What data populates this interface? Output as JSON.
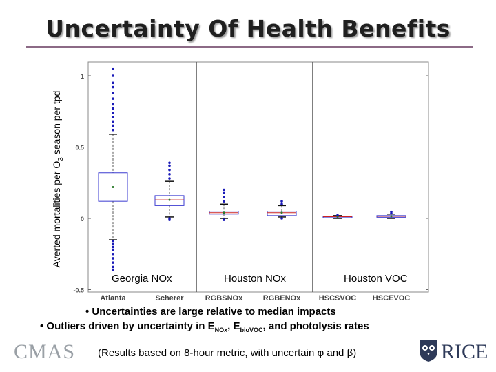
{
  "title": "Uncertainty Of Health Benefits",
  "y_axis_label": "Averted mortalities per O",
  "y_axis_label_sub": "3",
  "y_axis_label_tail": " season per tpd",
  "group_labels": [
    "Georgia NOx",
    "Houston NOx",
    "Houston VOC"
  ],
  "bullets": {
    "bullet1": "• Uncertainties are large relative to median impacts",
    "bullet2_pre": "• Outliers driven by uncertainty in E",
    "bullet2_sub1": "NOx",
    "bullet2_mid": ", E",
    "bullet2_sub2": "bioVOC",
    "bullet2_post": ", and photolysis rates"
  },
  "note": "(Results based on 8-hour metric, with uncertain φ and β)",
  "logos": {
    "left": "CMAS",
    "right": "RICE"
  },
  "colors": {
    "box": "#3a3ad0",
    "median": "#cc2222",
    "outlier": "#1a1ab8",
    "divider": "#555555"
  },
  "chart_data": {
    "type": "box",
    "title": "",
    "ylabel": "Averted mortalities per O3 season per tpd",
    "ylim": [
      -0.5,
      1.05
    ],
    "yticks": [
      1,
      0.5,
      0,
      -0.5
    ],
    "categories": [
      "Atlanta",
      "Scherer",
      "RGBSNOx",
      "RGBENOx",
      "HSCSVOC",
      "HSCEVOC"
    ],
    "groups": [
      {
        "name": "Georgia NOx",
        "members": [
          "Atlanta",
          "Scherer"
        ]
      },
      {
        "name": "Houston NOx",
        "members": [
          "RGBSNOx",
          "RGBENOx"
        ]
      },
      {
        "name": "Houston VOC",
        "members": [
          "HSCSVOC",
          "HSCEVOC"
        ]
      }
    ],
    "series": [
      {
        "name": "Atlanta",
        "whisker_low": -0.15,
        "q1": 0.12,
        "median": 0.22,
        "q3": 0.32,
        "whisker_high": 0.59,
        "outliers_low": [
          -0.36,
          -0.34,
          -0.31,
          -0.28,
          -0.25,
          -0.22,
          -0.2,
          -0.18,
          -0.16
        ],
        "outliers_high": [
          0.62,
          0.65,
          0.68,
          0.71,
          0.74,
          0.77,
          0.8,
          0.84,
          0.88,
          0.92,
          0.95,
          1.0,
          1.05
        ]
      },
      {
        "name": "Scherer",
        "whisker_low": 0.01,
        "q1": 0.09,
        "median": 0.13,
        "q3": 0.16,
        "whisker_high": 0.26,
        "outliers_low": [
          -0.01,
          0.0
        ],
        "outliers_high": [
          0.28,
          0.31,
          0.34,
          0.37,
          0.39
        ]
      },
      {
        "name": "RGBSNOx",
        "whisker_low": 0.0,
        "q1": 0.03,
        "median": 0.04,
        "q3": 0.05,
        "whisker_high": 0.1,
        "outliers_low": [
          -0.01
        ],
        "outliers_high": [
          0.12,
          0.15,
          0.18,
          0.2
        ]
      },
      {
        "name": "RGBENOx",
        "whisker_low": 0.01,
        "q1": 0.02,
        "median": 0.04,
        "q3": 0.05,
        "whisker_high": 0.09,
        "outliers_low": [
          0.0
        ],
        "outliers_high": [
          0.1,
          0.12
        ]
      },
      {
        "name": "HSCSVOC",
        "whisker_low": 0.0,
        "q1": 0.008,
        "median": 0.012,
        "q3": 0.015,
        "whisker_high": 0.02,
        "outliers_low": [],
        "outliers_high": [
          0.022
        ]
      },
      {
        "name": "HSCEVOC",
        "whisker_low": 0.0,
        "q1": 0.008,
        "median": 0.015,
        "q3": 0.02,
        "whisker_high": 0.03,
        "outliers_low": [],
        "outliers_high": [
          0.035,
          0.045
        ]
      }
    ]
  }
}
